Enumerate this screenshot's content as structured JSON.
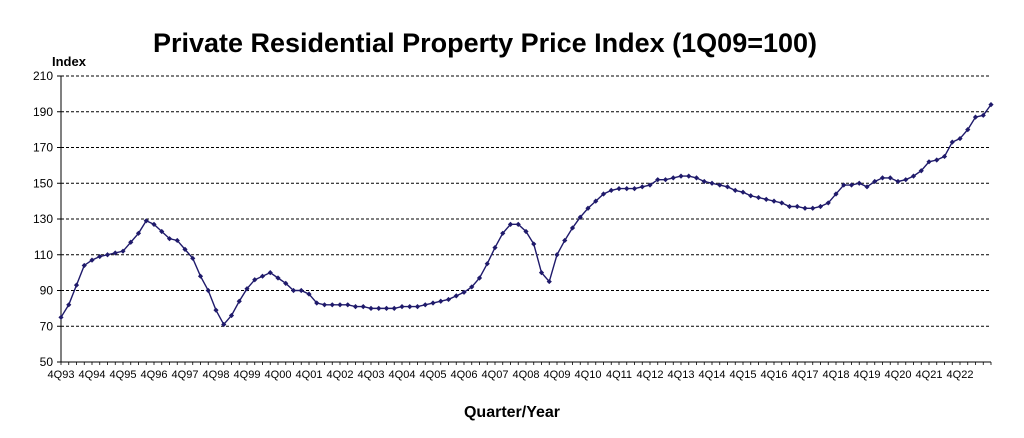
{
  "chart_data": {
    "type": "line",
    "title": "Private Residential Property Price Index (1Q09=100)",
    "ylabel": "Index",
    "xlabel": "Quarter/Year",
    "ylim": [
      50,
      210
    ],
    "yticks": [
      50,
      70,
      90,
      110,
      130,
      150,
      170,
      190,
      210
    ],
    "grid": "horizontal dashed",
    "line_color": "#1f1a6b",
    "x_tick_labels": [
      "4Q93",
      "4Q94",
      "4Q95",
      "4Q96",
      "4Q97",
      "4Q98",
      "4Q99",
      "4Q00",
      "4Q01",
      "4Q02",
      "4Q03",
      "4Q04",
      "4Q05",
      "4Q06",
      "4Q07",
      "4Q08",
      "4Q09",
      "4Q10",
      "4Q11",
      "4Q12",
      "4Q13",
      "4Q14",
      "4Q15",
      "4Q16",
      "4Q17",
      "4Q18",
      "4Q19",
      "4Q20",
      "4Q21",
      "4Q22"
    ],
    "series": [
      {
        "values": [
          75,
          82,
          93,
          104,
          107,
          109,
          110,
          111,
          112,
          117,
          122,
          129,
          127,
          123,
          119,
          118,
          113,
          108,
          98,
          90,
          79,
          71,
          76,
          84,
          91,
          96,
          98,
          100,
          97,
          94,
          90,
          90,
          88,
          83,
          82,
          82,
          82,
          82,
          81,
          81,
          80,
          80,
          80,
          80,
          81,
          81,
          81,
          82,
          83,
          84,
          85,
          87,
          89,
          92,
          97,
          105,
          114,
          122,
          127,
          127,
          123,
          116,
          100,
          95,
          110,
          118,
          125,
          131,
          136,
          140,
          144,
          146,
          147,
          147,
          147,
          148,
          149,
          152,
          152,
          153,
          154,
          154,
          153,
          151,
          150,
          149,
          148,
          146,
          145,
          143,
          142,
          141,
          140,
          139,
          137,
          137,
          136,
          136,
          137,
          139,
          144,
          149,
          149,
          150,
          148,
          151,
          153,
          153,
          151,
          152,
          154,
          157,
          162,
          163,
          165,
          173,
          175,
          180,
          187,
          188,
          194
        ]
      }
    ]
  }
}
